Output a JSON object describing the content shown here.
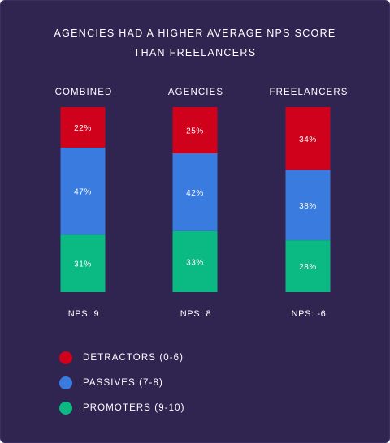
{
  "title_lines": [
    "AGENCIES HAD A HIGHER AVERAGE NPS SCORE",
    "THAN FREELANCERS"
  ],
  "chart_data": {
    "type": "bar",
    "stacked": true,
    "title": "AGENCIES HAD A HIGHER AVERAGE NPS SCORE THAN FREELANCERS",
    "categories": [
      "COMBINED",
      "AGENCIES",
      "FREELANCERS"
    ],
    "series": [
      {
        "name": "DETRACTORS (0-6)",
        "color": "#d0021b",
        "values": [
          22,
          25,
          34
        ]
      },
      {
        "name": "PASSIVES (7-8)",
        "color": "#3a7be0",
        "values": [
          47,
          42,
          38
        ]
      },
      {
        "name": "PROMOTERS (9-10)",
        "color": "#0bb983",
        "values": [
          31,
          33,
          28
        ]
      }
    ],
    "value_suffix": "%",
    "nps_labels": [
      "NPS: 9",
      "NPS: 8",
      "NPS: -6"
    ],
    "ylim": [
      0,
      100
    ],
    "grid": false,
    "legend_position": "bottom-left"
  }
}
